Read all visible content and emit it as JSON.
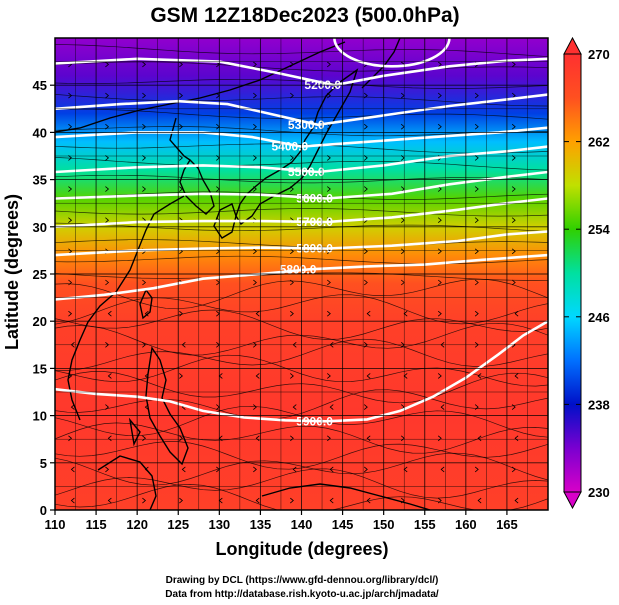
{
  "figure": {
    "title": "GSM 12Z18Dec2023 (500.0hPa)",
    "credit_line1": "Drawing by DCL (https://www.gfd-dennou.org/library/dcl/)",
    "credit_line2": "Data from http://database.rish.kyoto-u.ac.jp/arch/jmadata/"
  },
  "chart_data": {
    "type": "heatmap",
    "title": "GSM 12Z18Dec2023 (500.0hPa)",
    "xlabel": "Longitude (degrees)",
    "ylabel": "Latitude  (degrees)",
    "xlim": [
      110,
      170
    ],
    "ylim": [
      0,
      50
    ],
    "x_ticks": [
      "110",
      "115",
      "120",
      "125",
      "130",
      "135",
      "140",
      "145",
      "150",
      "155",
      "160",
      "165"
    ],
    "y_ticks": [
      "0",
      "5",
      "10",
      "15",
      "20",
      "25",
      "30",
      "35",
      "40",
      "45"
    ],
    "grid": true,
    "colorbar": {
      "min": 230,
      "max": 270,
      "ticks": [
        "230",
        "238",
        "246",
        "254",
        "262",
        "270"
      ],
      "stops": [
        {
          "value": 230,
          "color": "#d800c8"
        },
        {
          "value": 234,
          "color": "#7a00d0"
        },
        {
          "value": 238,
          "color": "#0010c8"
        },
        {
          "value": 242,
          "color": "#0070ff"
        },
        {
          "value": 246,
          "color": "#00d8ff"
        },
        {
          "value": 250,
          "color": "#00e0a0"
        },
        {
          "value": 254,
          "color": "#30d000"
        },
        {
          "value": 258,
          "color": "#c0e000"
        },
        {
          "value": 262,
          "color": "#ffa000"
        },
        {
          "value": 266,
          "color": "#ff5020"
        },
        {
          "value": 270,
          "color": "#ff3030"
        }
      ]
    },
    "temperature_bands": [
      {
        "lat": 50,
        "value": 233
      },
      {
        "lat": 46,
        "value": 235
      },
      {
        "lat": 42,
        "value": 240
      },
      {
        "lat": 39,
        "value": 245
      },
      {
        "lat": 36,
        "value": 250
      },
      {
        "lat": 33,
        "value": 255
      },
      {
        "lat": 30,
        "value": 259
      },
      {
        "lat": 27,
        "value": 263
      },
      {
        "lat": 24,
        "value": 266
      },
      {
        "lat": 20,
        "value": 268
      },
      {
        "lat": 10,
        "value": 269
      },
      {
        "lat": 0,
        "value": 268
      }
    ],
    "contours": [
      {
        "label": "5200.0",
        "points": [
          [
            110,
            47.3
          ],
          [
            120,
            47.8
          ],
          [
            130,
            47.5
          ],
          [
            137,
            46.3
          ],
          [
            144,
            45
          ],
          [
            150,
            46
          ],
          [
            158,
            47
          ],
          [
            165,
            47.6
          ],
          [
            170,
            47.8
          ]
        ]
      },
      {
        "label": "5300.0",
        "points": [
          [
            110,
            42.5
          ],
          [
            118,
            43
          ],
          [
            125,
            43.3
          ],
          [
            131,
            43
          ],
          [
            136,
            42
          ],
          [
            142,
            40.8
          ],
          [
            150,
            41.8
          ],
          [
            158,
            42.8
          ],
          [
            165,
            43.5
          ],
          [
            170,
            44
          ]
        ]
      },
      {
        "label": "5400.0",
        "points": [
          [
            110,
            39.5
          ],
          [
            120,
            40
          ],
          [
            128,
            40
          ],
          [
            134,
            39.5
          ],
          [
            140,
            38.5
          ],
          [
            148,
            39
          ],
          [
            156,
            39.5
          ],
          [
            164,
            40
          ],
          [
            170,
            40.5
          ]
        ]
      },
      {
        "label": "5500.0",
        "points": [
          [
            110,
            35.8
          ],
          [
            120,
            36.3
          ],
          [
            128,
            36.5
          ],
          [
            135,
            36.3
          ],
          [
            142,
            35.8
          ],
          [
            150,
            36.5
          ],
          [
            158,
            37.5
          ],
          [
            165,
            38
          ],
          [
            170,
            38.5
          ]
        ]
      },
      {
        "label": "5600.0",
        "points": [
          [
            110,
            33
          ],
          [
            120,
            33.3
          ],
          [
            128,
            33.5
          ],
          [
            135,
            33.4
          ],
          [
            143,
            33
          ],
          [
            151,
            33.5
          ],
          [
            158,
            34.5
          ],
          [
            165,
            35.3
          ],
          [
            170,
            35.8
          ]
        ]
      },
      {
        "label": "5700.0",
        "points": [
          [
            110,
            30
          ],
          [
            120,
            30.5
          ],
          [
            128,
            30.6
          ],
          [
            135,
            30.6
          ],
          [
            143,
            30.5
          ],
          [
            151,
            31
          ],
          [
            159,
            31.8
          ],
          [
            165,
            32.5
          ],
          [
            170,
            33
          ]
        ]
      },
      {
        "label": "5800.0",
        "points": [
          [
            110,
            27
          ],
          [
            120,
            27.5
          ],
          [
            128,
            27.7
          ],
          [
            135,
            27.8
          ],
          [
            143,
            27.7
          ],
          [
            151,
            28
          ],
          [
            159,
            28.5
          ],
          [
            165,
            29.2
          ],
          [
            170,
            29.5
          ]
        ]
      },
      {
        "label": "5800.0",
        "points": [
          [
            110,
            22.3
          ],
          [
            116,
            22.8
          ],
          [
            122,
            23.5
          ],
          [
            128,
            24.5
          ],
          [
            135,
            25
          ],
          [
            141,
            25.5
          ],
          [
            148,
            25.8
          ],
          [
            155,
            26
          ],
          [
            162,
            26.5
          ],
          [
            170,
            27
          ]
        ]
      },
      {
        "label": "5900.0",
        "points": [
          [
            110,
            12.8
          ],
          [
            115,
            12.3
          ],
          [
            120,
            12
          ],
          [
            124,
            11.5
          ],
          [
            128,
            10.5
          ],
          [
            133,
            9.8
          ],
          [
            138,
            9.5
          ],
          [
            143,
            9.4
          ],
          [
            148,
            9.6
          ],
          [
            152,
            10.5
          ],
          [
            156,
            12
          ],
          [
            160,
            14
          ],
          [
            164,
            16.5
          ],
          [
            167,
            18.5
          ],
          [
            170,
            20
          ]
        ]
      }
    ],
    "closed_contour": {
      "label": "",
      "center": [
        151,
        50
      ],
      "rx": 7,
      "ry": 3
    }
  },
  "legend_colors": {
    "land_outline": "#000000",
    "contour": "#ffffff",
    "grid": "#000000"
  }
}
